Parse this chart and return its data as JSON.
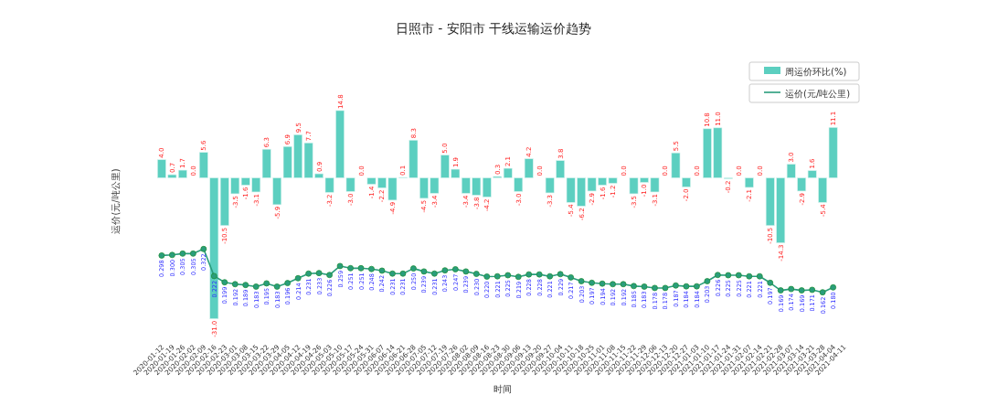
{
  "chart_data": {
    "type": "bar",
    "title": "日照市 - 安阳市 干线运输运价趋势",
    "xlabel": "时间",
    "ylabel": "运价(元/吨公里)",
    "categories": [
      "2020-01-12",
      "2020-01-19",
      "2020-01-26",
      "2020-02-02",
      "2020-02-09",
      "2020-02-16",
      "2020-02-23",
      "2020-03-01",
      "2020-03-08",
      "2020-03-15",
      "2020-03-22",
      "2020-03-29",
      "2020-04-05",
      "2020-04-12",
      "2020-04-19",
      "2020-04-26",
      "2020-05-03",
      "2020-05-10",
      "2020-05-17",
      "2020-05-24",
      "2020-05-31",
      "2020-06-07",
      "2020-06-14",
      "2020-06-21",
      "2020-06-28",
      "2020-07-05",
      "2020-07-12",
      "2020-07-19",
      "2020-07-26",
      "2020-08-02",
      "2020-08-09",
      "2020-08-16",
      "2020-08-23",
      "2020-08-30",
      "2020-09-06",
      "2020-09-13",
      "2020-09-20",
      "2020-09-27",
      "2020-10-04",
      "2020-10-11",
      "2020-10-18",
      "2020-10-25",
      "2020-11-01",
      "2020-11-08",
      "2020-11-15",
      "2020-11-22",
      "2020-11-29",
      "2020-12-06",
      "2020-12-13",
      "2020-12-20",
      "2020-12-27",
      "2021-01-03",
      "2021-01-10",
      "2021-01-17",
      "2021-01-24",
      "2021-01-31",
      "2021-02-07",
      "2021-02-14",
      "2021-02-21",
      "2021-02-28",
      "2021-03-07",
      "2021-03-14",
      "2021-03-21",
      "2021-03-28",
      "2021-04-04",
      "2021-04-11"
    ],
    "series": [
      {
        "name": "周运价环比(%)",
        "color": "#5ccfc0",
        "values": [
          4.0,
          0.7,
          1.7,
          0.0,
          5.6,
          -31.0,
          -10.5,
          -3.5,
          -1.6,
          -3.1,
          6.3,
          -5.9,
          6.9,
          9.5,
          7.7,
          0.9,
          -3.2,
          14.8,
          -3.0,
          0.0,
          -1.4,
          -2.2,
          -4.9,
          0.1,
          8.3,
          -4.5,
          -3.4,
          5.0,
          1.9,
          -3.4,
          -3.8,
          -4.2,
          0.3,
          2.1,
          -3.0,
          4.2,
          0.0,
          -3.3,
          3.8,
          -5.4,
          -6.2,
          -2.9,
          -1.6,
          -1.2,
          0.0,
          -3.5,
          -1.0,
          -3.1,
          0.0,
          5.5,
          -2.0,
          0.0,
          10.8,
          11.0,
          -0.2,
          0.0,
          -2.1,
          0.0,
          -10.5,
          -14.3,
          3.0,
          -2.9,
          1.6,
          -5.4,
          11.1,
          null
        ],
        "value_labels": [
          "4.0",
          "0.7",
          "1.7",
          "0.0",
          "5.6",
          "-31.0",
          "-10.5",
          "-3.5",
          "-1.6",
          "-3.1",
          "6.3",
          "-5.9",
          "6.9",
          "9.5",
          "7.7",
          "0.9",
          "-3.2",
          "14.8",
          "-3.0",
          "0.0",
          "-1.4",
          "-2.2",
          "-4.9",
          "0.1",
          "8.3",
          "-4.5",
          "-3.4",
          "5.0",
          "1.9",
          "-3.4",
          "-3.8",
          "-4.2",
          "0.3",
          "2.1",
          "-3.0",
          "4.2",
          "0.0",
          "-3.3",
          "3.8",
          "-5.4",
          "-6.2",
          "-2.9",
          "-1.6",
          "-1.2",
          "0.0",
          "-3.5",
          "-1.0",
          "-3.1",
          "0.0",
          "5.5",
          "-2.0",
          "0.0",
          "10.8",
          "11.0",
          "-0.2",
          "0.0",
          "-2.1",
          "0.0",
          "-10.5",
          "-14.3",
          "3.0",
          "-2.9",
          "1.6",
          "-5.4",
          "11.1",
          null
        ]
      },
      {
        "name": "运价(元/吨公里)",
        "type": "line",
        "axis": "y2",
        "color": "#2a9d7c",
        "values": [
          0.298,
          0.3,
          0.305,
          0.305,
          0.322,
          0.222,
          0.199,
          0.192,
          0.189,
          0.183,
          0.195,
          0.183,
          0.196,
          0.214,
          0.231,
          0.233,
          0.226,
          0.259,
          0.251,
          0.251,
          0.248,
          0.242,
          0.231,
          0.231,
          0.25,
          0.239,
          0.231,
          0.243,
          0.247,
          0.239,
          0.23,
          0.22,
          0.221,
          0.225,
          0.219,
          0.228,
          0.228,
          0.221,
          0.229,
          0.217,
          0.203,
          0.197,
          0.194,
          0.192,
          0.192,
          0.185,
          0.183,
          0.178,
          0.178,
          0.187,
          0.184,
          0.184,
          0.203,
          0.226,
          0.225,
          0.225,
          0.221,
          0.221,
          0.197,
          0.169,
          0.174,
          0.169,
          0.171,
          0.162,
          0.18,
          null
        ],
        "value_labels": [
          "0.298",
          "0.300",
          "0.305",
          "0.305",
          "0.322",
          "0.222",
          "0.199",
          "0.192",
          "0.189",
          "0.183",
          "0.195",
          "0.183",
          "0.196",
          "0.214",
          "0.231",
          "0.233",
          "0.226",
          "0.259",
          "0.251",
          "0.251",
          "0.248",
          "0.242",
          "0.231",
          "0.231",
          "0.250",
          "0.239",
          "0.231",
          "0.243",
          "0.247",
          "0.239",
          "0.230",
          "0.220",
          "0.221",
          "0.225",
          "0.219",
          "0.228",
          "0.228",
          "0.221",
          "0.229",
          "0.217",
          "0.203",
          "0.197",
          "0.194",
          "0.192",
          "0.192",
          "0.185",
          "0.183",
          "0.178",
          "0.178",
          "0.187",
          "0.184",
          "0.184",
          "0.203",
          "0.226",
          "0.225",
          "0.225",
          "0.221",
          "0.221",
          "0.197",
          "0.169",
          "0.174",
          "0.169",
          "0.171",
          "0.162",
          "0.180",
          null
        ]
      }
    ],
    "tick_labels": "x",
    "legend": "top right",
    "marker": "circle"
  }
}
